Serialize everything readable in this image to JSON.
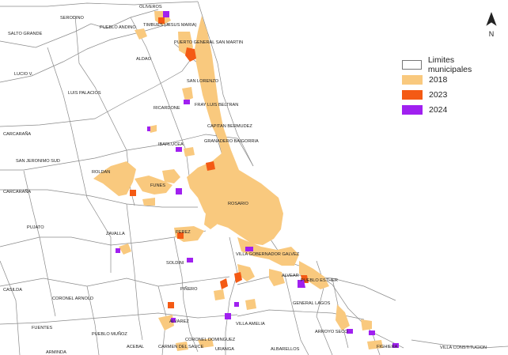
{
  "legend": {
    "items": [
      {
        "label": "Limites municipales",
        "color": "#ffffff"
      },
      {
        "label": "2018",
        "color": "#f9c97e"
      },
      {
        "label": "2023",
        "color": "#f45a14"
      },
      {
        "label": "2024",
        "color": "#a020f0"
      }
    ]
  },
  "north_arrow": {
    "label": "N"
  },
  "places": [
    "OLIVEROS",
    "SERODINO",
    "PUEBLO ANDINO",
    "TIMBUES (JESUS MARIA)",
    "SALTO GRANDE",
    "PUERTO GENERAL SAN MARTIN",
    "ALDAO",
    "LUCIO V.",
    "SAN LORENZO",
    "LUIS PALACIOS",
    "FRAY LUIS BELTRAN",
    "RICARDONE",
    "CAPITAN BERMUDEZ",
    "CARCARAÑA",
    "IBARLUCEA",
    "GRANADERO BAIGORRIA",
    "SAN JERONIMO SUD",
    "ROLDAN",
    "FUNES",
    "CARCARAÑA",
    "ROSARIO",
    "PUJATO",
    "ZAVALLA",
    "PEREZ",
    "VILLA GOBERNADOR GALVEZ",
    "SOLDINI",
    "ALVEAR",
    "PUEBLO ESTHER",
    "CASILDA",
    "CORONEL ARNOLD",
    "PIÑERO",
    "GENERAL LAGOS",
    "ALVAREZ",
    "FUENTES",
    "PUEBLO MUÑOZ",
    "VILLA AMELIA",
    "ARROYO SECO",
    "CORONEL DOMINGUEZ",
    "ACEBAL",
    "CARMEN DEL SAUCE",
    "URANGA",
    "ALBARELLOS",
    "FIGHIERA",
    "VILLA CONSTITUCION",
    "ARMINDA"
  ]
}
